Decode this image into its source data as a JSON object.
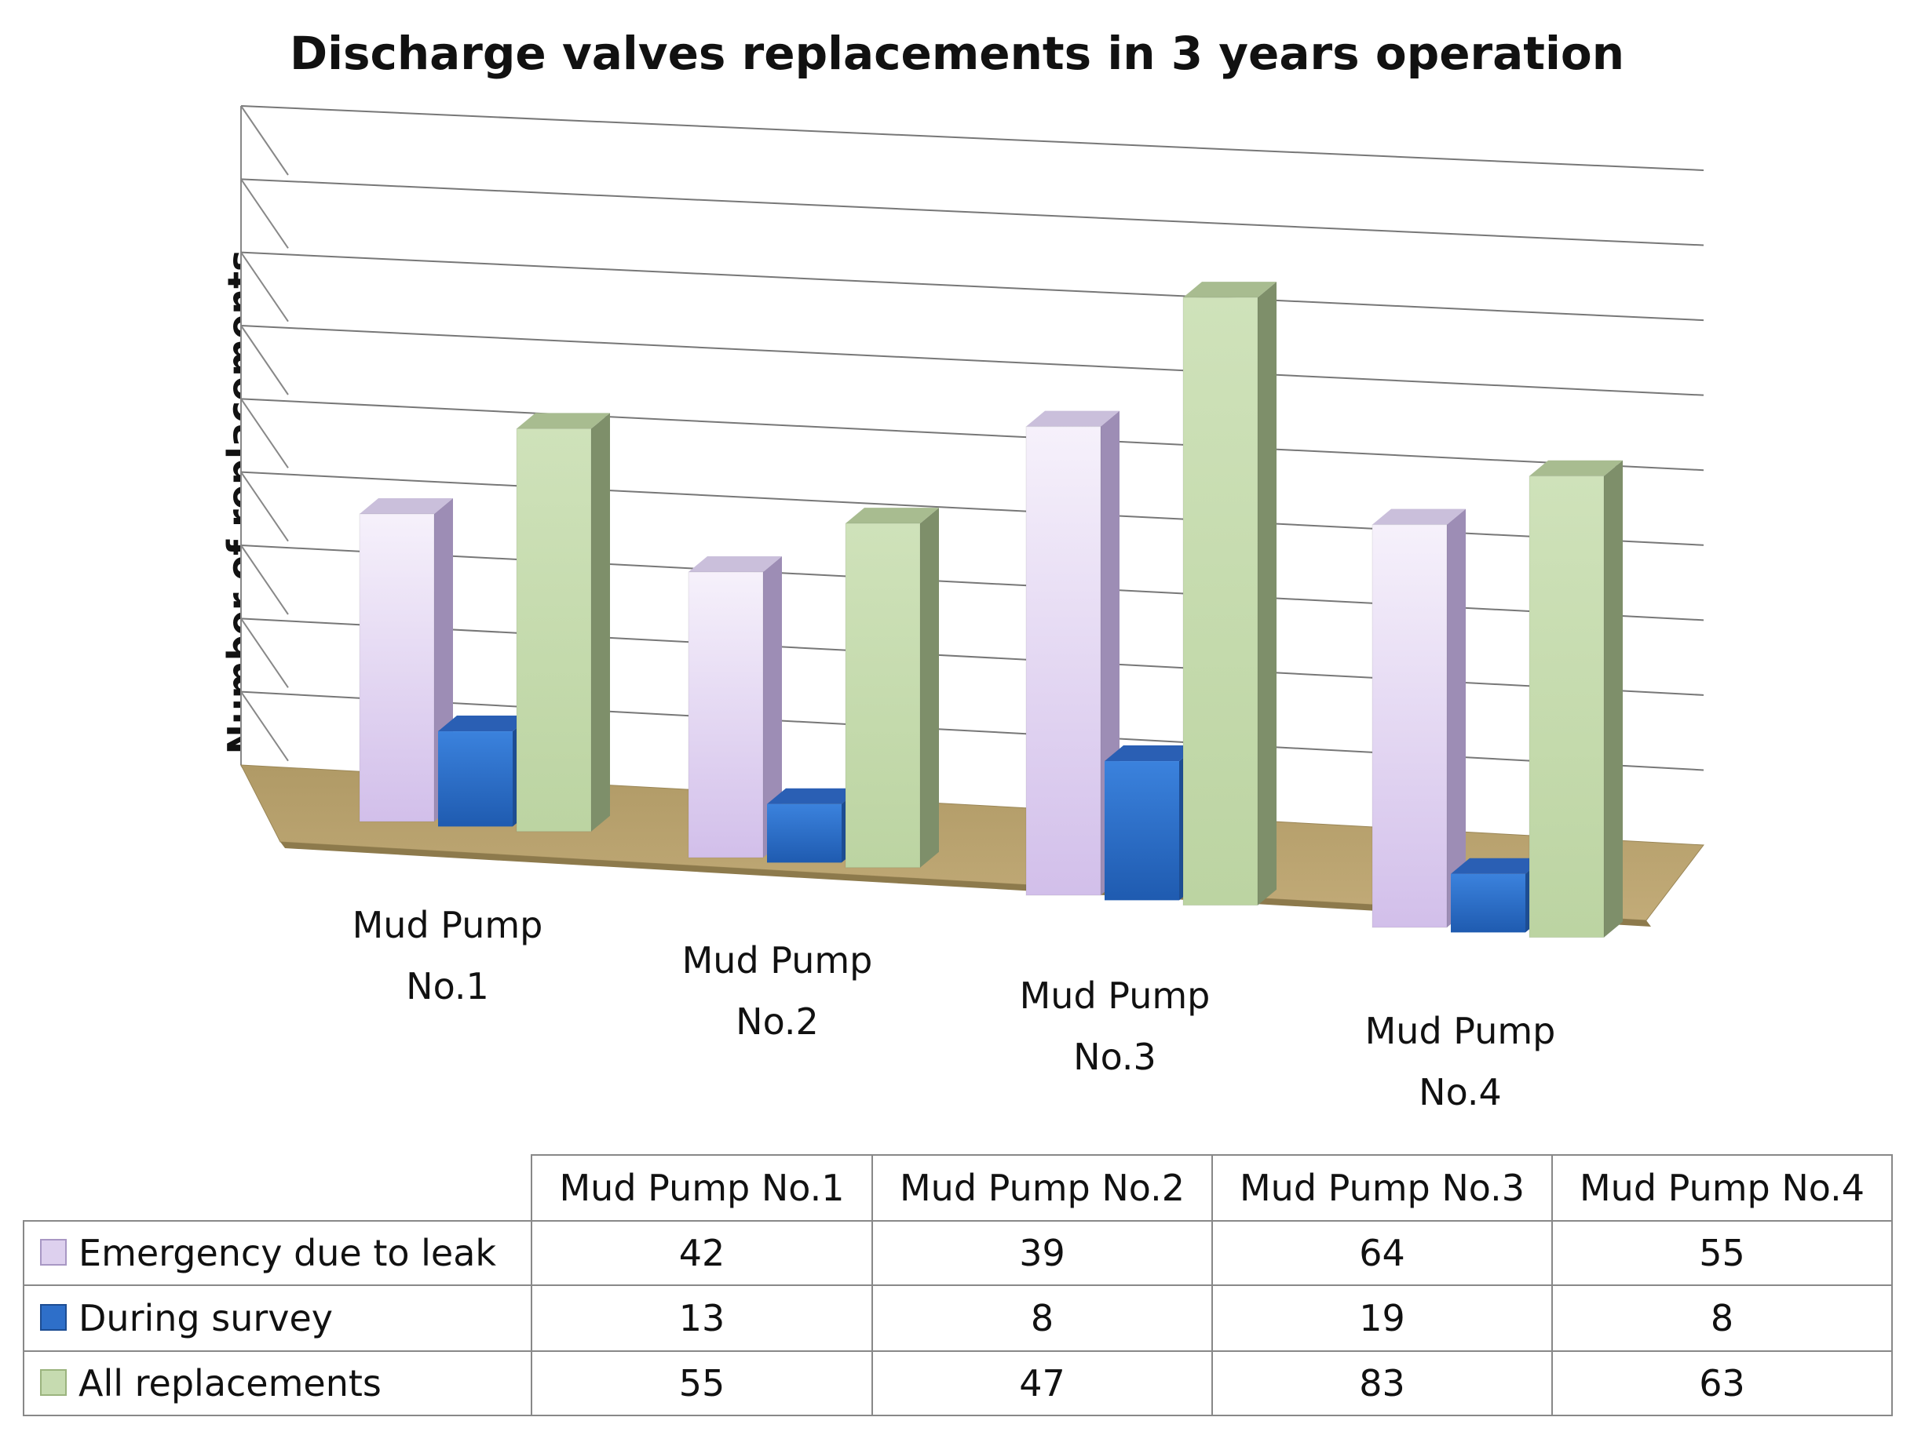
{
  "chart_data": {
    "type": "bar",
    "title": "Discharge valves replacements in 3 years operation",
    "ylabel": "Number of replacements",
    "xlabel": "",
    "ylim": [
      0,
      90
    ],
    "grid": true,
    "categories": [
      [
        "Mud Pump",
        "No.1"
      ],
      [
        "Mud Pump",
        "No.2"
      ],
      [
        "Mud Pump",
        "No.3"
      ],
      [
        "Mud Pump",
        "No.4"
      ]
    ],
    "table_headers": [
      "Mud Pump No.1",
      "Mud Pump No.2",
      "Mud Pump No.3",
      "Mud Pump No.4"
    ],
    "series": [
      {
        "name": "Emergency due to leak",
        "values": [
          42,
          39,
          64,
          55
        ],
        "color": "#e6dcf2"
      },
      {
        "name": "During survey",
        "values": [
          13,
          8,
          19,
          8
        ],
        "color": "#2e6fc9"
      },
      {
        "name": "All replacements",
        "values": [
          55,
          47,
          83,
          63
        ],
        "color": "#c6dbb0"
      }
    ]
  }
}
